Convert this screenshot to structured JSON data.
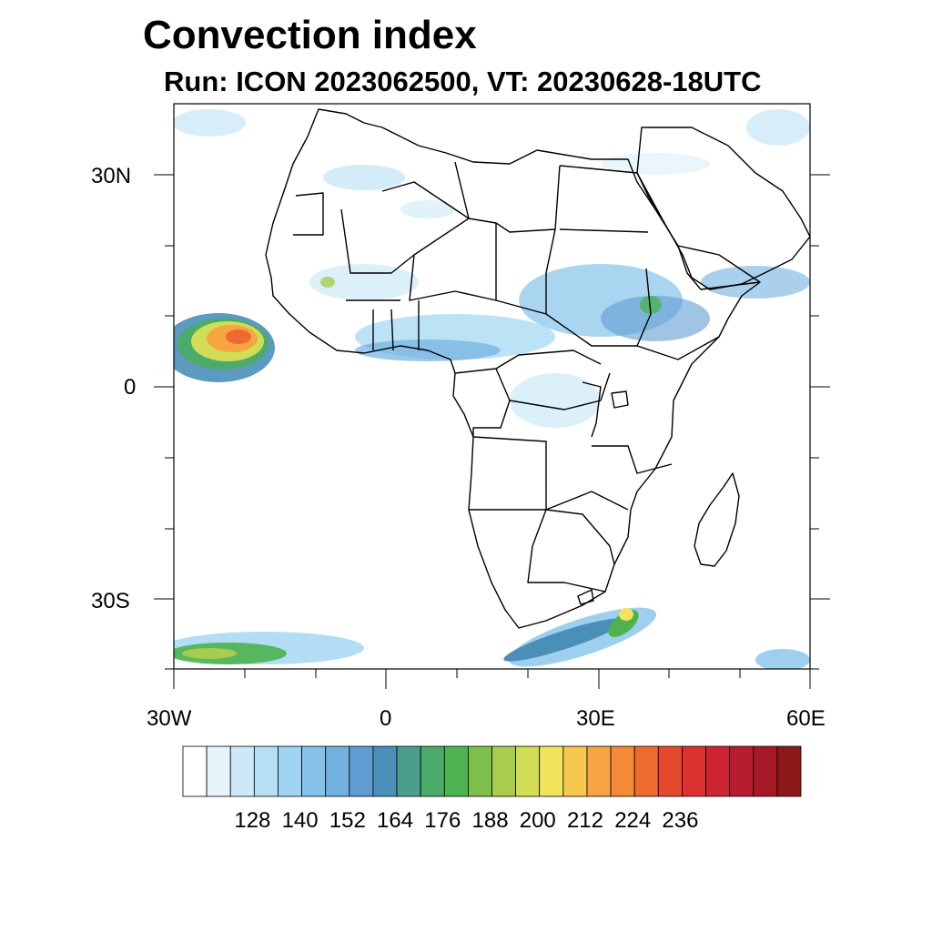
{
  "title": "Convection index",
  "subtitle": "Run: ICON 2023062500,  VT: 20230628-18UTC",
  "axes": {
    "lat_labels": [
      "30N",
      "0",
      "30S"
    ],
    "lon_labels": [
      "30W",
      "0",
      "30E",
      "60E"
    ]
  },
  "colorbar": {
    "labels": [
      "128",
      "140",
      "152",
      "164",
      "176",
      "188",
      "200",
      "212",
      "224",
      "236"
    ],
    "colors": [
      "#ffffff",
      "#e6f3fb",
      "#cde9f7",
      "#b6dff4",
      "#9fd5f2",
      "#86c3ea",
      "#72b0df",
      "#5f9cd2",
      "#4a8fb8",
      "#4d9d8f",
      "#4aab6a",
      "#4cb350",
      "#7dbf4c",
      "#a8cc4e",
      "#d2dd56",
      "#f2e35c",
      "#f7c84f",
      "#f6a542",
      "#f28a38",
      "#ee6a2f",
      "#e5492c",
      "#dc3131",
      "#cd2432",
      "#b81c2f",
      "#a51a26",
      "#8c1818"
    ]
  },
  "map": {
    "land_outline_color": "#000000",
    "water_color": "#ffffff"
  }
}
